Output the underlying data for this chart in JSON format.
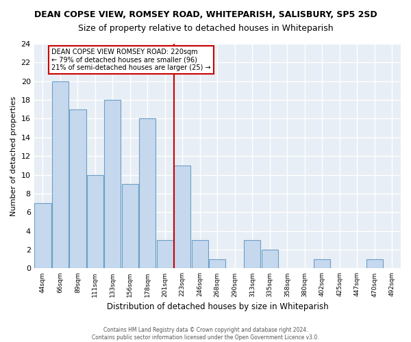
{
  "title": "DEAN COPSE VIEW, ROMSEY ROAD, WHITEPARISH, SALISBURY, SP5 2SD",
  "subtitle": "Size of property relative to detached houses in Whiteparish",
  "xlabel": "Distribution of detached houses by size in Whiteparish",
  "ylabel": "Number of detached properties",
  "bin_labels": [
    "44sqm",
    "66sqm",
    "89sqm",
    "111sqm",
    "133sqm",
    "156sqm",
    "178sqm",
    "201sqm",
    "223sqm",
    "246sqm",
    "268sqm",
    "290sqm",
    "313sqm",
    "335sqm",
    "358sqm",
    "380sqm",
    "402sqm",
    "425sqm",
    "447sqm",
    "470sqm",
    "492sqm"
  ],
  "bar_heights": [
    7,
    20,
    17,
    10,
    18,
    9,
    16,
    3,
    11,
    3,
    1,
    0,
    3,
    2,
    0,
    0,
    1,
    0,
    0,
    1,
    0
  ],
  "bar_color": "#c5d8ed",
  "bar_edgecolor": "#6b9ec8",
  "ref_line_color": "#cc0000",
  "ref_line_label_idx": 8,
  "ylim": [
    0,
    24
  ],
  "yticks": [
    0,
    2,
    4,
    6,
    8,
    10,
    12,
    14,
    16,
    18,
    20,
    22,
    24
  ],
  "annotation_title": "DEAN COPSE VIEW ROMSEY ROAD: 220sqm",
  "annotation_line1": "← 79% of detached houses are smaller (96)",
  "annotation_line2": "21% of semi-detached houses are larger (25) →",
  "annotation_box_edgecolor": "#cc0000",
  "footer1": "Contains HM Land Registry data © Crown copyright and database right 2024.",
  "footer2": "Contains public sector information licensed under the Open Government Licence v3.0.",
  "background_color": "#ffffff",
  "plot_bg_color": "#e8eef5",
  "grid_color": "#ffffff",
  "title_fontsize": 9,
  "subtitle_fontsize": 9
}
